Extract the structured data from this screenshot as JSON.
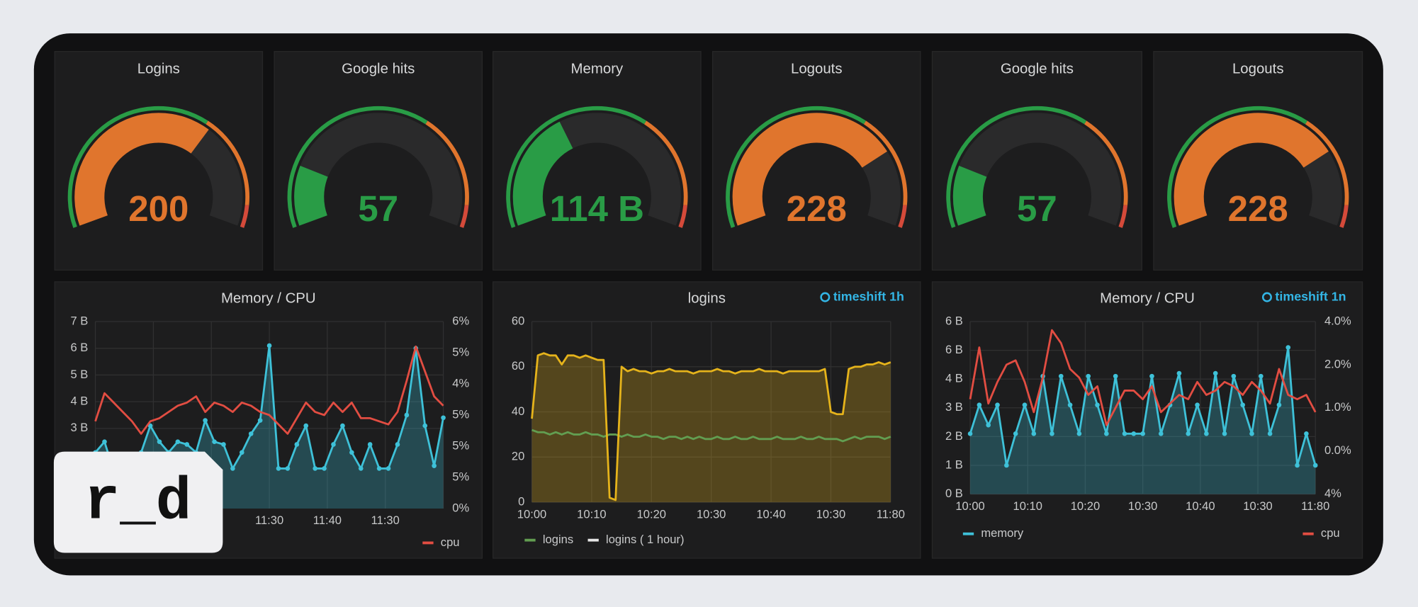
{
  "logo": "r_d",
  "chart_data": [
    {
      "type": "gauge",
      "title": "Logins",
      "values": [
        200
      ],
      "range": [
        0,
        300
      ],
      "thresholds": [
        195,
        280
      ],
      "colors": [
        "#299c46",
        "#e0752d",
        "#d44a3a"
      ]
    },
    {
      "type": "gauge",
      "title": "Google hits",
      "values": [
        57
      ],
      "range": [
        0,
        300
      ],
      "thresholds": [
        195,
        280
      ],
      "colors": [
        "#299c46",
        "#e0752d",
        "#d44a3a"
      ]
    },
    {
      "type": "gauge",
      "title": "Memory",
      "values": [
        114
      ],
      "value_labels": [
        "114 B"
      ],
      "range": [
        0,
        300
      ],
      "thresholds": [
        195,
        280
      ],
      "colors": [
        "#299c46",
        "#e0752d",
        "#d44a3a"
      ]
    },
    {
      "type": "gauge",
      "title": "Logouts",
      "values": [
        228
      ],
      "range": [
        0,
        300
      ],
      "thresholds": [
        195,
        280
      ],
      "colors": [
        "#299c46",
        "#e0752d",
        "#d44a3a"
      ]
    },
    {
      "type": "gauge",
      "title": "Google hits",
      "values": [
        57
      ],
      "range": [
        0,
        300
      ],
      "thresholds": [
        195,
        280
      ],
      "colors": [
        "#299c46",
        "#e0752d",
        "#d44a3a"
      ]
    },
    {
      "type": "gauge",
      "title": "Logouts",
      "values": [
        228
      ],
      "range": [
        0,
        300
      ],
      "thresholds": [
        195,
        280
      ],
      "colors": [
        "#299c46",
        "#e0752d",
        "#d44a3a"
      ]
    },
    {
      "type": "line",
      "title": "Memory / CPU",
      "grid": true,
      "legend": "bottom",
      "x_labels": [
        null,
        null,
        null,
        "11:30",
        "11:40",
        "11:30",
        null
      ],
      "ylim": [
        0,
        7
      ],
      "yticks": [
        {
          "value": 7,
          "label": "7 B"
        },
        {
          "value": 6,
          "label": "6 B"
        },
        {
          "value": 5,
          "label": "5 B"
        },
        {
          "value": 4,
          "label": "4 B"
        },
        {
          "value": 3,
          "label": "3 B"
        }
      ],
      "y2lim": [
        0,
        6
      ],
      "y2_labels": [
        "6%",
        "5%",
        "4%",
        "5%",
        "5%",
        "5%",
        "0%"
      ],
      "series": [
        {
          "color": "#3ec1d8",
          "fill": true,
          "points": true,
          "values": [
            2.1,
            2.5,
            1.4,
            0.8,
            1.5,
            2.1,
            3.1,
            2.5,
            2.1,
            2.5,
            2.4,
            2.1,
            3.3,
            2.5,
            2.4,
            1.5,
            2.1,
            2.8,
            3.3,
            6.1,
            1.5,
            1.5,
            2.4,
            3.1,
            1.5,
            1.5,
            2.4,
            3.1,
            2.1,
            1.5,
            2.4,
            1.5,
            1.5,
            2.4,
            3.5,
            6.0,
            3.1,
            1.6,
            3.4
          ]
        },
        {
          "name": "cpu",
          "color": "#e24d42",
          "axis": "y2",
          "values": [
            2.8,
            3.7,
            3.4,
            3.1,
            2.8,
            2.4,
            2.8,
            2.9,
            3.1,
            3.3,
            3.4,
            3.6,
            3.1,
            3.4,
            3.3,
            3.1,
            3.4,
            3.3,
            3.1,
            3.0,
            2.7,
            2.4,
            2.9,
            3.4,
            3.1,
            3.0,
            3.4,
            3.1,
            3.4,
            2.9,
            2.9,
            2.8,
            2.7,
            3.1,
            4.1,
            5.2,
            4.4,
            3.6,
            3.3
          ]
        }
      ]
    },
    {
      "type": "line",
      "title": "logins",
      "annotation": "timeshift  1h",
      "grid": true,
      "legend": "bottom",
      "x_labels": [
        "10:00",
        "10:10",
        "10:20",
        "10:30",
        "10:40",
        "10:30",
        "11:80"
      ],
      "ylim": [
        0,
        80
      ],
      "y_labels": [
        "60",
        "60",
        "40",
        "20",
        "0"
      ],
      "series": [
        {
          "name": "logins",
          "color": "#629e51",
          "values": [
            32,
            31,
            31,
            30,
            31,
            30,
            31,
            30,
            30,
            31,
            30,
            30,
            29,
            30,
            30,
            29,
            30,
            29,
            29,
            30,
            29,
            29,
            28,
            29,
            29,
            28,
            29,
            28,
            29,
            28,
            28,
            29,
            28,
            28,
            29,
            28,
            28,
            29,
            28,
            28,
            28,
            29,
            28,
            28,
            28,
            29,
            28,
            28,
            29,
            28,
            28,
            28,
            27,
            28,
            29,
            28,
            29,
            29,
            29,
            28,
            29
          ]
        },
        {
          "name": "logins ( 1 hour)",
          "color": "#e5b31b",
          "legend_color": "#e6e6e6",
          "fill": true,
          "values": [
            37,
            65,
            66,
            65,
            65,
            61,
            65,
            65,
            64,
            65,
            64,
            63,
            63,
            2,
            1,
            60,
            58,
            59,
            58,
            58,
            57,
            58,
            58,
            59,
            58,
            58,
            58,
            57,
            58,
            58,
            58,
            59,
            58,
            58,
            57,
            58,
            58,
            58,
            59,
            58,
            58,
            58,
            57,
            58,
            58,
            58,
            58,
            58,
            58,
            59,
            40,
            39,
            39,
            59,
            60,
            60,
            61,
            61,
            62,
            61,
            62
          ]
        }
      ]
    },
    {
      "type": "line",
      "title": "Memory / CPU",
      "annotation": "timeshift  1n",
      "grid": true,
      "legend": "bottom",
      "x_labels": [
        "10:00",
        "10:10",
        "10:20",
        "10:30",
        "10:40",
        "10:30",
        "11:80"
      ],
      "ylim": [
        0,
        6
      ],
      "y_labels": [
        "6 B",
        "6 B",
        "4 B",
        "3 B",
        "2 B",
        "1 B",
        "0 B"
      ],
      "y2lim": [
        0,
        4
      ],
      "y2_labels": [
        "4.0%",
        "2.0%",
        "1.0%",
        "0.0%",
        "4%"
      ],
      "series": [
        {
          "name": "memory",
          "color": "#3ec1d8",
          "fill": true,
          "points": true,
          "values": [
            2.1,
            3.1,
            2.4,
            3.1,
            1.0,
            2.1,
            3.1,
            2.1,
            4.1,
            2.1,
            4.1,
            3.1,
            2.1,
            4.1,
            3.1,
            2.1,
            4.1,
            2.1,
            2.1,
            2.1,
            4.1,
            2.1,
            3.1,
            4.2,
            2.1,
            3.1,
            2.1,
            4.2,
            2.1,
            4.1,
            3.1,
            2.1,
            4.1,
            2.1,
            3.1,
            5.1,
            1.0,
            2.1,
            1.0
          ]
        },
        {
          "name": "cpu",
          "color": "#e24d42",
          "axis": "y2",
          "values": [
            2.2,
            3.4,
            2.1,
            2.6,
            3.0,
            3.1,
            2.6,
            1.9,
            2.7,
            3.8,
            3.5,
            2.9,
            2.7,
            2.3,
            2.5,
            1.6,
            2.0,
            2.4,
            2.4,
            2.2,
            2.5,
            1.9,
            2.1,
            2.3,
            2.2,
            2.6,
            2.3,
            2.4,
            2.6,
            2.5,
            2.3,
            2.6,
            2.4,
            2.1,
            2.9,
            2.3,
            2.2,
            2.3,
            1.9
          ]
        }
      ]
    }
  ]
}
